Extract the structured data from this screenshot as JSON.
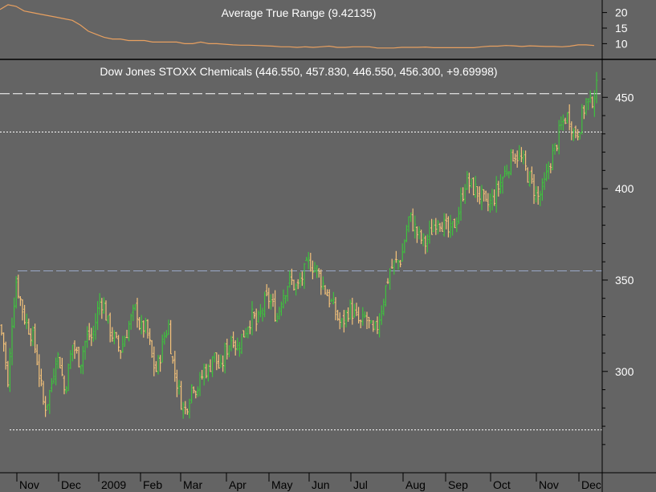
{
  "colors": {
    "background": "#646464",
    "atr_line": "#E8A060",
    "bar_up": "#3EC23E",
    "bar_down": "#F4C27A",
    "resistance_dash": "#FFFFFF",
    "dotted_level": "#FFFFFF",
    "support_dash": "#9AA8C8",
    "text": "#FFFFFF",
    "axis": "#000000",
    "panel_divider": "#000000"
  },
  "chart_data": [
    {
      "type": "line",
      "panel": "indicator",
      "title": "Average True Range (9.42135)",
      "ylim": [
        7,
        23
      ],
      "yticks": [
        10,
        15,
        20
      ],
      "series": [
        {
          "x": [
            0,
            10,
            20,
            30,
            40,
            50,
            60,
            70,
            80,
            90,
            100,
            110,
            120,
            130,
            140,
            150,
            160,
            170,
            180,
            190,
            200,
            210,
            220,
            230,
            240,
            250,
            260,
            270,
            280,
            290,
            300,
            310,
            320,
            330,
            340,
            350,
            360,
            370,
            380,
            390,
            400,
            410,
            420,
            430,
            440,
            450,
            460,
            470,
            480,
            490,
            500,
            510,
            520,
            530,
            540,
            550,
            560,
            570,
            580,
            590,
            600,
            610,
            620,
            630,
            640,
            650,
            660,
            670,
            680,
            690,
            700,
            710,
            720,
            730,
            740
          ],
          "values": [
            21,
            22.5,
            22,
            20.5,
            20,
            19.5,
            19,
            18.5,
            18,
            17.5,
            16,
            14,
            13,
            12,
            11.5,
            11.5,
            11,
            11,
            11,
            10.5,
            10.5,
            10.5,
            10.5,
            10,
            10,
            10.5,
            10,
            10,
            9.8,
            9.6,
            9.5,
            9.5,
            9.4,
            9.3,
            9.2,
            9,
            9,
            8.8,
            9,
            8.8,
            9,
            9.2,
            8.8,
            8.8,
            9,
            9,
            9,
            8.6,
            8.6,
            8.6,
            8.8,
            8.8,
            8.8,
            8.9,
            8.7,
            8.7,
            8.7,
            8.7,
            8.7,
            8.7,
            9,
            9.2,
            9.2,
            9.4,
            9.3,
            9.1,
            9.3,
            9.2,
            9.1,
            9.1,
            9,
            9.2,
            9.6,
            9.6,
            9.4
          ]
        }
      ]
    },
    {
      "type": "ohlc",
      "panel": "price",
      "title": "Dow Jones STOXX Chemicals (446.550, 457.830, 446.550, 456.300, +9.69998)",
      "ylim": [
        245,
        469
      ],
      "yticks": [
        300,
        350,
        400,
        450
      ],
      "xlabels": [
        "Nov",
        "Dec",
        "2009",
        "Feb",
        "Mar",
        "Apr",
        "May",
        "Jun",
        "Jul",
        "Aug",
        "Sep",
        "Oct",
        "Nov",
        "Dec"
      ],
      "close_path": {
        "x": [
          0,
          5,
          10,
          15,
          20,
          25,
          30,
          35,
          40,
          45,
          50,
          55,
          60,
          65,
          70,
          75,
          80,
          85,
          90,
          95,
          100,
          105,
          110,
          115,
          120,
          125,
          130,
          135,
          140,
          145,
          150,
          155,
          160,
          165,
          170,
          175,
          180,
          185,
          190,
          195,
          200,
          205,
          210,
          215,
          220,
          225,
          230,
          235,
          240,
          245,
          250,
          255,
          260,
          265,
          270,
          275,
          280,
          285,
          290,
          295,
          300,
          305,
          310,
          315,
          320,
          325,
          330,
          335,
          340,
          345,
          350,
          355,
          360,
          365,
          370,
          375,
          380,
          385,
          390,
          395,
          400,
          405,
          410,
          415,
          420,
          425,
          430,
          435,
          440,
          445,
          450,
          455,
          460,
          465,
          470,
          475,
          480,
          485,
          490,
          495,
          500,
          505,
          510,
          515,
          520,
          525,
          530,
          535,
          540,
          545,
          550,
          555,
          560,
          565,
          570,
          575,
          580,
          585,
          590,
          595,
          600,
          605,
          610,
          615,
          620,
          625,
          630,
          635,
          640,
          645,
          650,
          655,
          660,
          665,
          670,
          675,
          680,
          685,
          690,
          695,
          700,
          705,
          710,
          715,
          720,
          725,
          730,
          735,
          740,
          745
        ],
        "values": [
          325,
          315,
          290,
          328,
          350,
          340,
          330,
          325,
          320,
          310,
          295,
          280,
          285,
          295,
          310,
          305,
          290,
          300,
          315,
          310,
          305,
          315,
          320,
          318,
          330,
          340,
          335,
          325,
          320,
          315,
          312,
          318,
          325,
          330,
          335,
          322,
          325,
          318,
          305,
          300,
          310,
          320,
          325,
          305,
          295,
          285,
          278,
          285,
          295,
          290,
          295,
          302,
          300,
          310,
          305,
          300,
          310,
          315,
          320,
          312,
          318,
          322,
          328,
          330,
          325,
          332,
          338,
          340,
          335,
          330,
          340,
          345,
          350,
          348,
          345,
          350,
          355,
          360,
          358,
          355,
          350,
          345,
          340,
          335,
          330,
          325,
          330,
          335,
          332,
          328,
          325,
          330,
          325,
          320,
          325,
          335,
          345,
          355,
          358,
          360,
          362,
          375,
          385,
          380,
          375,
          372,
          370,
          375,
          380,
          385,
          382,
          378,
          375,
          380,
          385,
          395,
          405,
          402,
          400,
          398,
          395,
          390,
          392,
          395,
          400,
          405,
          410,
          415,
          420,
          418,
          415,
          410,
          405,
          400,
          395,
          398,
          405,
          415,
          420,
          428,
          435,
          440,
          438,
          430,
          432,
          440,
          448,
          446,
          452,
          456
        ]
      },
      "reference_lines": [
        {
          "name": "resistance-dash-line",
          "value": 452,
          "style": "dashed"
        },
        {
          "name": "upper-dotted-line",
          "value": 431,
          "style": "dotted"
        },
        {
          "name": "support-dash-line",
          "value": 355,
          "style": "dashed"
        },
        {
          "name": "lower-dotted-line",
          "value": 268,
          "style": "dotted"
        }
      ]
    }
  ]
}
